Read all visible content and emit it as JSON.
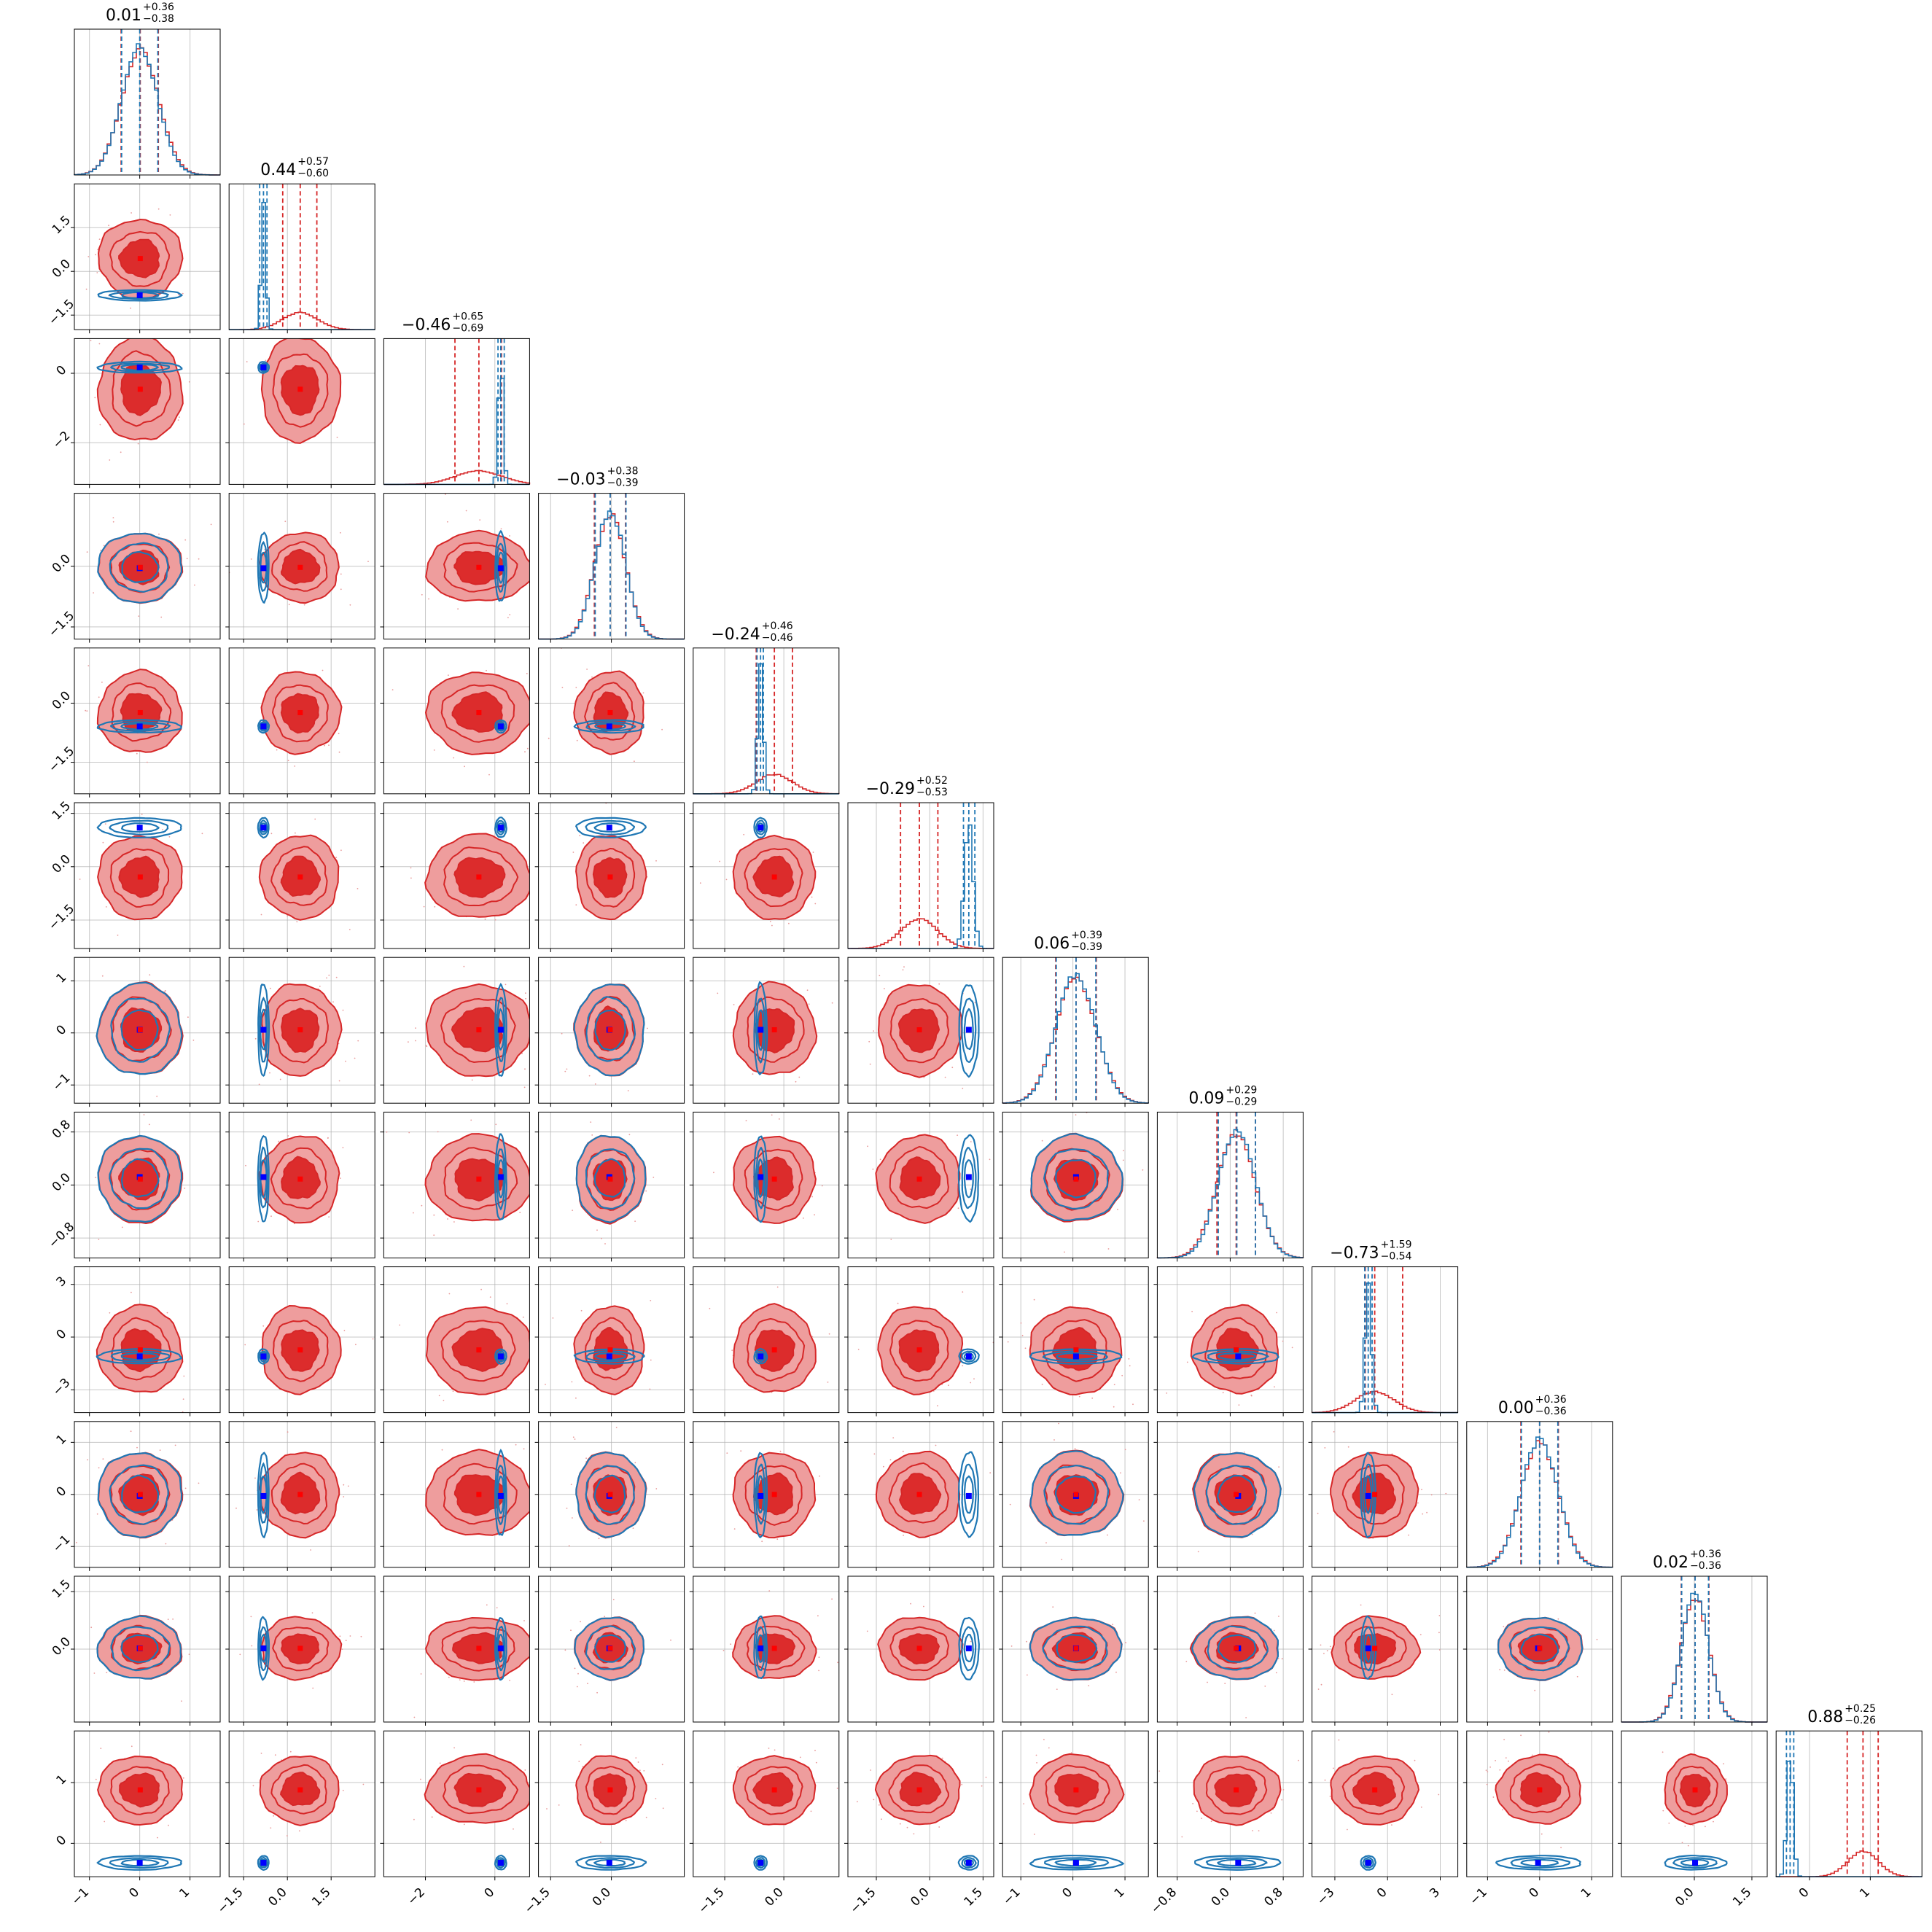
{
  "chart_data": {
    "type": "corner",
    "n_params": 12,
    "colors": {
      "red": "#d62728",
      "blue": "#1f77b4",
      "blue_marker": "#0000ff",
      "red_marker": "#ff0000"
    },
    "titles": [
      {
        "median": "0.01",
        "plus": "+0.36",
        "minus": "−0.38"
      },
      {
        "median": "0.44",
        "plus": "+0.57",
        "minus": "−0.60"
      },
      {
        "median": "−0.46",
        "plus": "+0.65",
        "minus": "−0.69"
      },
      {
        "median": "−0.03",
        "plus": "+0.38",
        "minus": "−0.39"
      },
      {
        "median": "−0.24",
        "plus": "+0.46",
        "minus": "−0.46"
      },
      {
        "median": "−0.29",
        "plus": "+0.52",
        "minus": "−0.53"
      },
      {
        "median": "0.06",
        "plus": "+0.39",
        "minus": "−0.39"
      },
      {
        "median": "0.09",
        "plus": "+0.29",
        "minus": "−0.29"
      },
      {
        "median": "−0.73",
        "plus": "+1.59",
        "minus": "−0.54"
      },
      {
        "median": "0.00",
        "plus": "+0.36",
        "minus": "−0.36"
      },
      {
        "median": "0.02",
        "plus": "+0.36",
        "minus": "−0.36"
      },
      {
        "median": "0.88",
        "plus": "+0.25",
        "minus": "−0.26"
      }
    ],
    "params": [
      {
        "range": [
          -1.3,
          1.6
        ],
        "ticks": [
          -1,
          0,
          1
        ],
        "tick_labels": [
          "−1",
          "0",
          "1"
        ],
        "red": {
          "mean": 0.01,
          "sd": 0.37,
          "q": [
            -0.37,
            0.01,
            0.37
          ]
        },
        "blue": {
          "mean": 0.0,
          "sd": 0.36,
          "q": [
            -0.36,
            0.0,
            0.36
          ]
        },
        "truth": 0.0
      },
      {
        "range": [
          -2.0,
          3.0
        ],
        "ticks": [
          -1.5,
          0.0,
          1.5
        ],
        "tick_labels": [
          "−1.5",
          "0.0",
          "1.5"
        ],
        "red": {
          "mean": 0.44,
          "sd": 0.6,
          "q": [
            -0.16,
            0.44,
            1.01
          ]
        },
        "blue": {
          "mean": -0.82,
          "sd": 0.08,
          "q": [
            -0.95,
            -0.82,
            -0.7
          ]
        },
        "truth": -0.82
      },
      {
        "range": [
          -3.2,
          1.0
        ],
        "ticks": [
          -2,
          0
        ],
        "tick_labels": [
          "−2",
          "0"
        ],
        "red": {
          "mean": -0.46,
          "sd": 0.67,
          "q": [
            -1.15,
            -0.46,
            0.19
          ]
        },
        "blue": {
          "mean": 0.17,
          "sd": 0.07,
          "q": [
            0.09,
            0.17,
            0.27
          ]
        },
        "truth": 0.17
      },
      {
        "range": [
          -1.8,
          1.8
        ],
        "ticks": [
          -1.5,
          0.0
        ],
        "tick_labels": [
          "−1.5",
          "0.0"
        ],
        "red": {
          "mean": -0.03,
          "sd": 0.38,
          "q": [
            -0.42,
            -0.03,
            0.35
          ]
        },
        "blue": {
          "mean": -0.03,
          "sd": 0.37,
          "q": [
            -0.4,
            -0.03,
            0.36
          ]
        },
        "truth": -0.05
      },
      {
        "range": [
          -2.3,
          1.4
        ],
        "ticks": [
          -1.5,
          0.0
        ],
        "tick_labels": [
          "−1.5",
          "0.0"
        ],
        "red": {
          "mean": -0.24,
          "sd": 0.46,
          "q": [
            -0.7,
            -0.24,
            0.22
          ]
        },
        "blue": {
          "mean": -0.59,
          "sd": 0.07,
          "q": [
            -0.68,
            -0.59,
            -0.52
          ]
        },
        "truth": -0.59
      },
      {
        "range": [
          -2.3,
          1.8
        ],
        "ticks": [
          -1.5,
          0.0,
          1.5
        ],
        "tick_labels": [
          "−1.5",
          "0.0",
          "1.5"
        ],
        "red": {
          "mean": -0.29,
          "sd": 0.52,
          "q": [
            -0.82,
            -0.29,
            0.23
          ]
        },
        "blue": {
          "mean": 1.1,
          "sd": 0.12,
          "q": [
            0.95,
            1.1,
            1.27
          ]
        },
        "truth": 1.1
      },
      {
        "range": [
          -1.35,
          1.45
        ],
        "ticks": [
          -1,
          0,
          1
        ],
        "tick_labels": [
          "−1",
          "0",
          "1"
        ],
        "red": {
          "mean": 0.06,
          "sd": 0.39,
          "q": [
            -0.33,
            0.06,
            0.45
          ]
        },
        "blue": {
          "mean": 0.06,
          "sd": 0.38,
          "q": [
            -0.32,
            0.06,
            0.44
          ]
        },
        "truth": 0.06
      },
      {
        "range": [
          -1.1,
          1.1
        ],
        "ticks": [
          -0.8,
          0.0,
          0.8
        ],
        "tick_labels": [
          "−0.8",
          "0.0",
          "0.8"
        ],
        "red": {
          "mean": 0.09,
          "sd": 0.29,
          "q": [
            -0.2,
            0.09,
            0.38
          ]
        },
        "blue": {
          "mean": 0.1,
          "sd": 0.28,
          "q": [
            -0.18,
            0.1,
            0.38
          ]
        },
        "truth": 0.12
      },
      {
        "range": [
          -4.3,
          4.0
        ],
        "ticks": [
          -3,
          0,
          3
        ],
        "tick_labels": [
          "−3",
          "0",
          "3"
        ],
        "red": {
          "mean": -0.73,
          "sd": 1.1,
          "q": [
            -1.27,
            -0.73,
            0.86
          ]
        },
        "blue": {
          "mean": -1.1,
          "sd": 0.18,
          "q": [
            -1.3,
            -1.1,
            -0.88
          ]
        },
        "truth": -1.1
      },
      {
        "range": [
          -1.4,
          1.4
        ],
        "ticks": [
          -1,
          0,
          1
        ],
        "tick_labels": [
          "−1",
          "0",
          "1"
        ],
        "red": {
          "mean": 0.0,
          "sd": 0.36,
          "q": [
            -0.36,
            0.0,
            0.36
          ]
        },
        "blue": {
          "mean": 0.0,
          "sd": 0.35,
          "q": [
            -0.35,
            0.0,
            0.35
          ]
        },
        "truth": -0.03
      },
      {
        "range": [
          -1.9,
          1.9
        ],
        "ticks": [
          0.0,
          1.5
        ],
        "tick_labels": [
          "0.0",
          "1.5"
        ],
        "red": {
          "mean": 0.02,
          "sd": 0.36,
          "q": [
            -0.34,
            0.02,
            0.38
          ]
        },
        "blue": {
          "mean": 0.02,
          "sd": 0.35,
          "q": [
            -0.33,
            0.02,
            0.37
          ]
        },
        "truth": 0.02
      },
      {
        "range": [
          -0.55,
          1.85
        ],
        "ticks": [
          0,
          1
        ],
        "tick_labels": [
          "0",
          "1"
        ],
        "red": {
          "mean": 0.88,
          "sd": 0.25,
          "q": [
            0.62,
            0.88,
            1.13
          ]
        },
        "blue": {
          "mean": -0.32,
          "sd": 0.05,
          "q": [
            -0.38,
            -0.32,
            -0.26
          ]
        },
        "truth": -0.32
      }
    ],
    "grid": true
  }
}
